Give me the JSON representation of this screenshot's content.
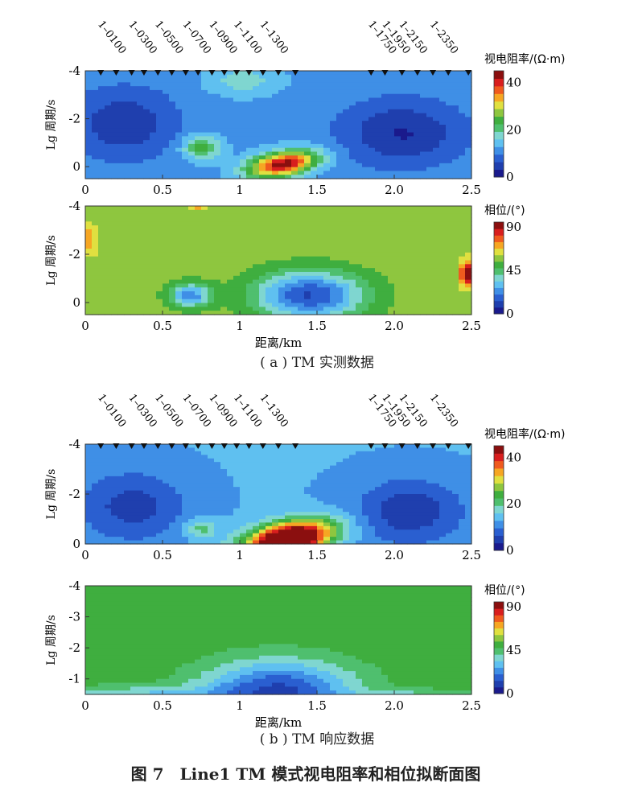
{
  "figure": {
    "caption": "图 7　Line1 TM 模式视电阻率和相位拟断面图",
    "subcaption_a": "( a ) TM 实测数据",
    "subcaption_b": "( b ) TM 响应数据"
  },
  "chart_data": [
    {
      "type": "heatmap",
      "panel": "a-resistivity",
      "ylabel": "Lg 周期/s",
      "xlabel": "",
      "colorbar_label": "视电阻率/(Ω·m)",
      "colorbar_ticks": [
        0,
        20,
        40
      ],
      "clim": [
        0,
        45
      ],
      "xlim": [
        0,
        2.5
      ],
      "ylim": [
        -4,
        0.5
      ],
      "x_ticks": [
        0,
        0.5,
        1,
        1.5,
        2.0,
        2.5
      ],
      "x_tick_labels": [
        "0",
        "0.5",
        "1",
        "1.5",
        "2.0",
        "2.5"
      ],
      "y_ticks": [
        -4,
        -2,
        0
      ],
      "stations": [
        {
          "x": 0.1,
          "label": "1–0100"
        },
        {
          "x": 0.2,
          "label": ""
        },
        {
          "x": 0.3,
          "label": "1–0300"
        },
        {
          "x": 0.38,
          "label": ""
        },
        {
          "x": 0.47,
          "label": "1–0500"
        },
        {
          "x": 0.56,
          "label": ""
        },
        {
          "x": 0.65,
          "label": "1–0700"
        },
        {
          "x": 0.73,
          "label": ""
        },
        {
          "x": 0.82,
          "label": "1–0900"
        },
        {
          "x": 0.9,
          "label": ""
        },
        {
          "x": 0.98,
          "label": "1–1100"
        },
        {
          "x": 1.06,
          "label": ""
        },
        {
          "x": 1.15,
          "label": "1–1300"
        },
        {
          "x": 1.25,
          "label": ""
        },
        {
          "x": 1.36,
          "label": ""
        },
        {
          "x": 1.85,
          "label": "1–1750"
        },
        {
          "x": 1.94,
          "label": "1–1950"
        },
        {
          "x": 2.05,
          "label": "1–2150"
        },
        {
          "x": 2.15,
          "label": ""
        },
        {
          "x": 2.25,
          "label": "1–2350"
        },
        {
          "x": 2.35,
          "label": ""
        },
        {
          "x": 2.48,
          "label": ""
        }
      ],
      "anomalies": [
        {
          "x": 0.25,
          "y": -1.8,
          "sx": 0.35,
          "sy": 1.5,
          "v": -8
        },
        {
          "x": 2.05,
          "y": -1.4,
          "sx": 0.4,
          "sy": 1.4,
          "v": -9
        },
        {
          "x": 1.28,
          "y": -0.1,
          "sx": 0.2,
          "sy": 0.55,
          "v": 32,
          "skew": 0.5
        },
        {
          "x": 0.75,
          "y": -0.8,
          "sx": 0.12,
          "sy": 0.5,
          "v": 12
        },
        {
          "x": 1.02,
          "y": -3.6,
          "sx": 0.22,
          "sy": 0.6,
          "v": 6
        }
      ],
      "base": 12
    },
    {
      "type": "heatmap",
      "panel": "a-phase",
      "ylabel": "Lg 周期/s",
      "xlabel": "距离/km",
      "colorbar_label": "相位/(°)",
      "colorbar_ticks": [
        0,
        45,
        90
      ],
      "clim": [
        0,
        95
      ],
      "xlim": [
        0,
        2.5
      ],
      "ylim": [
        -4,
        0.5
      ],
      "x_ticks": [
        0,
        0.5,
        1,
        1.5,
        2.0,
        2.5
      ],
      "x_tick_labels": [
        "0",
        "0.5",
        "1",
        "1.5",
        "2.0",
        "2.5"
      ],
      "y_ticks": [
        -4,
        -2,
        0
      ],
      "anomalies": [
        {
          "x": 1.45,
          "y": -0.3,
          "sx": 0.35,
          "sy": 1.0,
          "v": -45
        },
        {
          "x": 0.68,
          "y": -0.3,
          "sx": 0.14,
          "sy": 0.5,
          "v": -35
        },
        {
          "x": 2.48,
          "y": -1.2,
          "sx": 0.05,
          "sy": 0.5,
          "v": 40
        },
        {
          "x": 0.03,
          "y": -2.6,
          "sx": 0.05,
          "sy": 0.6,
          "v": 15
        },
        {
          "x": 0.72,
          "y": -4.0,
          "sx": 0.05,
          "sy": 0.15,
          "v": 20
        }
      ],
      "base": 58
    },
    {
      "type": "heatmap",
      "panel": "b-resistivity",
      "ylabel": "Lg 周期/s",
      "xlabel": "",
      "colorbar_label": "视电阻率/(Ω·m)",
      "colorbar_ticks": [
        0,
        20,
        40
      ],
      "clim": [
        0,
        45
      ],
      "xlim": [
        0,
        2.5
      ],
      "ylim": [
        -4,
        0
      ],
      "x_ticks": [
        0,
        0.5,
        1,
        1.5,
        2.0,
        2.5
      ],
      "x_tick_labels": [
        "0",
        "0.5",
        "1",
        "1.5",
        "2.0",
        "2.5"
      ],
      "y_ticks": [
        -4,
        -2,
        0
      ],
      "stations": "same-as-a",
      "anomalies": [
        {
          "x": 0.3,
          "y": -1.5,
          "sx": 0.35,
          "sy": 1.4,
          "v": -8
        },
        {
          "x": 2.1,
          "y": -1.3,
          "sx": 0.35,
          "sy": 1.3,
          "v": -9
        },
        {
          "x": 1.32,
          "y": -0.2,
          "sx": 0.25,
          "sy": 0.7,
          "v": 45,
          "skew": 0.5
        },
        {
          "x": 0.75,
          "y": -0.6,
          "sx": 0.1,
          "sy": 0.4,
          "v": 8
        }
      ],
      "base": 13
    },
    {
      "type": "heatmap",
      "panel": "b-phase",
      "ylabel": "Lg 周期/s",
      "xlabel": "距离/km",
      "colorbar_label": "相位/(°)",
      "colorbar_ticks": [
        0,
        45,
        90
      ],
      "clim": [
        0,
        95
      ],
      "xlim": [
        0,
        2.5
      ],
      "ylim": [
        -4,
        -0.5
      ],
      "x_ticks": [
        0,
        0.5,
        1,
        1.5,
        2.0,
        2.5
      ],
      "x_tick_labels": [
        "0",
        "0.5",
        "1",
        "1.5",
        "2.0",
        "2.5"
      ],
      "y_ticks": [
        -4,
        -3,
        -2,
        -1
      ],
      "anomalies": [
        {
          "x": 1.25,
          "y": -0.6,
          "sx": 0.5,
          "sy": 1.0,
          "v": -40
        },
        {
          "x": 0.3,
          "y": -0.4,
          "sx": 0.6,
          "sy": 0.35,
          "v": -20
        },
        {
          "x": 2.2,
          "y": -0.4,
          "sx": 0.4,
          "sy": 0.25,
          "v": -15
        }
      ],
      "base": 52
    }
  ]
}
